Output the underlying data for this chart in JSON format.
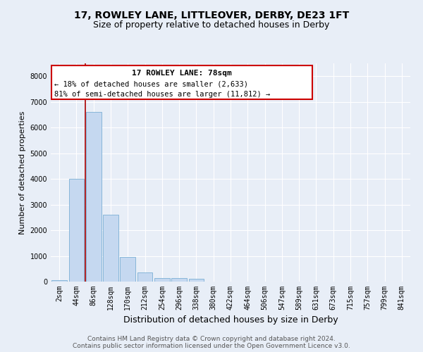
{
  "title1": "17, ROWLEY LANE, LITTLEOVER, DERBY, DE23 1FT",
  "title2": "Size of property relative to detached houses in Derby",
  "xlabel": "Distribution of detached houses by size in Derby",
  "ylabel": "Number of detached properties",
  "categories": [
    "2sqm",
    "44sqm",
    "86sqm",
    "128sqm",
    "170sqm",
    "212sqm",
    "254sqm",
    "296sqm",
    "338sqm",
    "380sqm",
    "422sqm",
    "464sqm",
    "506sqm",
    "547sqm",
    "589sqm",
    "631sqm",
    "673sqm",
    "715sqm",
    "757sqm",
    "799sqm",
    "841sqm"
  ],
  "values": [
    50,
    4000,
    6600,
    2600,
    950,
    350,
    150,
    130,
    100,
    0,
    0,
    0,
    0,
    0,
    0,
    0,
    0,
    0,
    0,
    0,
    0
  ],
  "bar_color": "#c5d8f0",
  "bar_edge_color": "#7aafd4",
  "annotation_text_line1": "17 ROWLEY LANE: 78sqm",
  "annotation_text_line2": "← 18% of detached houses are smaller (2,633)",
  "annotation_text_line3": "81% of semi-detached houses are larger (11,812) →",
  "red_line_color": "#aa0000",
  "annotation_rect_color": "#ffffff",
  "annotation_rect_edge": "#cc0000",
  "footer1": "Contains HM Land Registry data © Crown copyright and database right 2024.",
  "footer2": "Contains public sector information licensed under the Open Government Licence v3.0.",
  "ylim": [
    0,
    8500
  ],
  "yticks": [
    0,
    1000,
    2000,
    3000,
    4000,
    5000,
    6000,
    7000,
    8000
  ],
  "bg_color": "#e8eef7",
  "plot_bg_color": "#e8eef7",
  "grid_color": "#ffffff",
  "title1_fontsize": 10,
  "title2_fontsize": 9,
  "xlabel_fontsize": 9,
  "ylabel_fontsize": 8,
  "tick_fontsize": 7,
  "footer_fontsize": 6.5
}
